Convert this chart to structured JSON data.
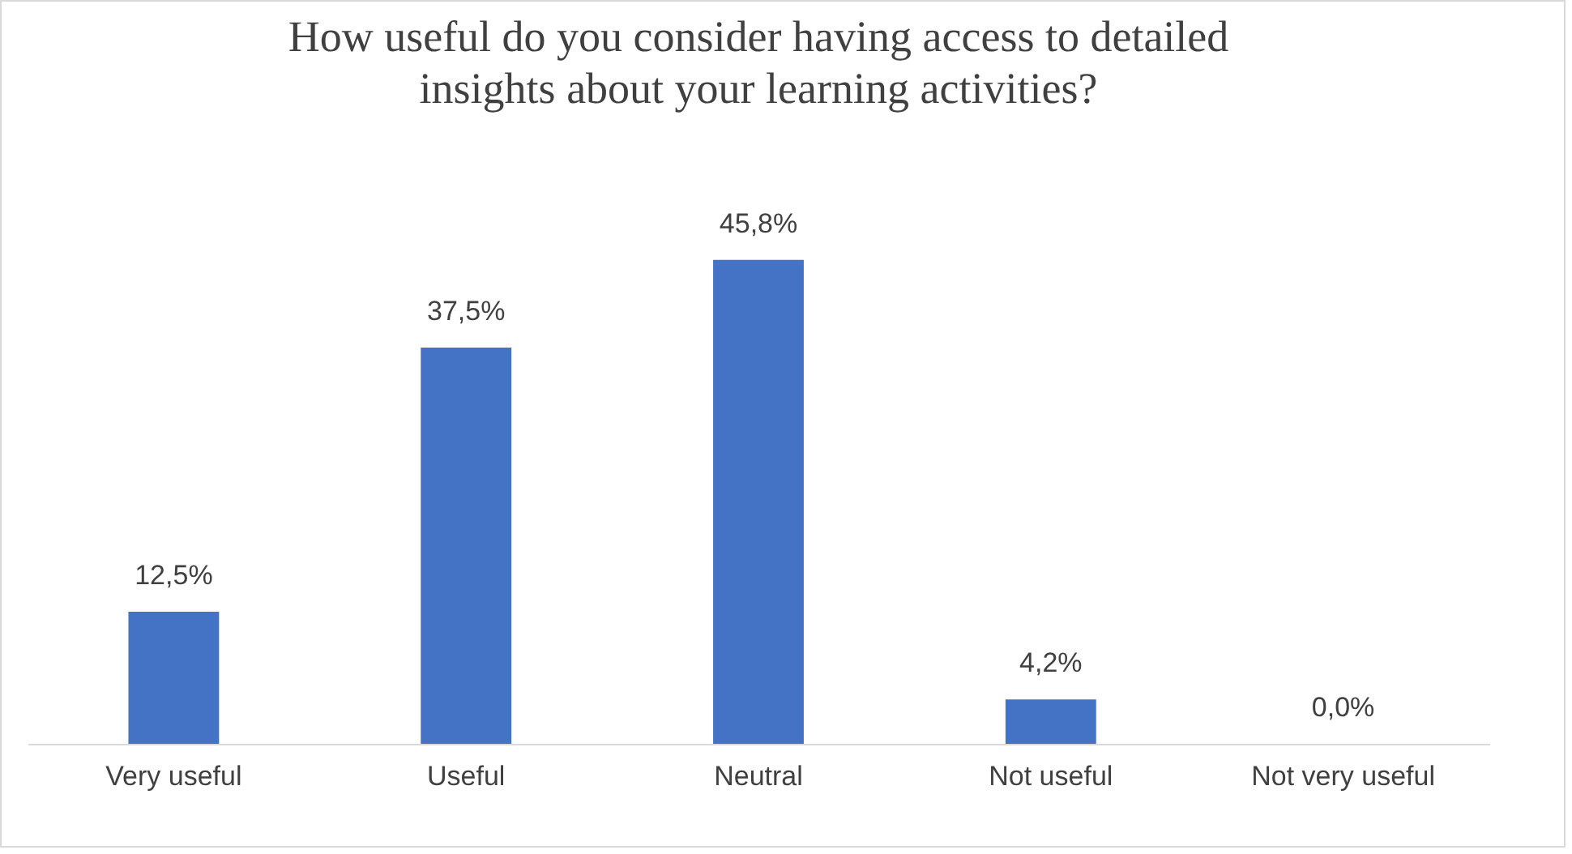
{
  "chart_data": {
    "type": "bar",
    "title": "How useful do you consider having access to detailed insights about your learning activities?",
    "categories": [
      "Very useful",
      "Useful",
      "Neutral",
      "Not useful",
      "Not very useful"
    ],
    "values": [
      12.5,
      37.5,
      45.8,
      4.2,
      0.0
    ],
    "value_labels": [
      "12,5%",
      "37,5%",
      "45,8%",
      "4,2%",
      "0,0%"
    ],
    "color": "#4472c4"
  }
}
